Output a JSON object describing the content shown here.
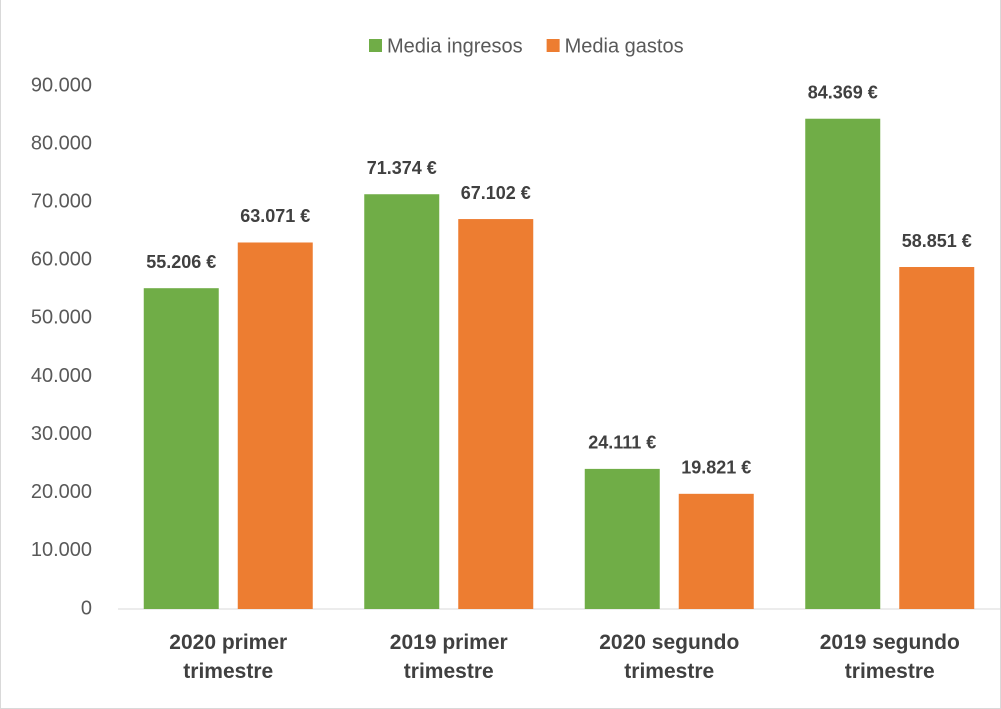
{
  "chart_data": {
    "type": "bar",
    "categories": [
      "2020 primer trimestre",
      "2019 primer trimestre",
      "2020 segundo trimestre",
      "2019 segundo trimestre"
    ],
    "series": [
      {
        "name": "Media ingresos",
        "color": "#70ad47",
        "values": [
          55206,
          71374,
          24111,
          84369
        ],
        "value_labels": [
          "55.206 €",
          "71.374 €",
          "24.111 €",
          "84.369 €"
        ]
      },
      {
        "name": "Media gastos",
        "color": "#ed7d31",
        "values": [
          63071,
          67102,
          19821,
          58851
        ],
        "value_labels": [
          "63.071 €",
          "67.102 €",
          "19.821 €",
          "58.851 €"
        ]
      }
    ],
    "ylim": [
      0,
      90000
    ],
    "yticks": [
      0,
      {
        "value": 10000,
        "label": "10.000"
      },
      {
        "value": 20000,
        "label": "20.000"
      },
      {
        "value": 30000,
        "label": "30.000"
      },
      {
        "value": 40000,
        "label": "40.000"
      },
      {
        "value": 50000,
        "label": "50.000"
      },
      {
        "value": 60000,
        "label": "60.000"
      },
      {
        "value": 70000,
        "label": "70.000"
      },
      {
        "value": 80000,
        "label": "80.000"
      },
      {
        "value": 90000,
        "label": "90.000"
      }
    ],
    "legend": "top",
    "grid": false
  }
}
